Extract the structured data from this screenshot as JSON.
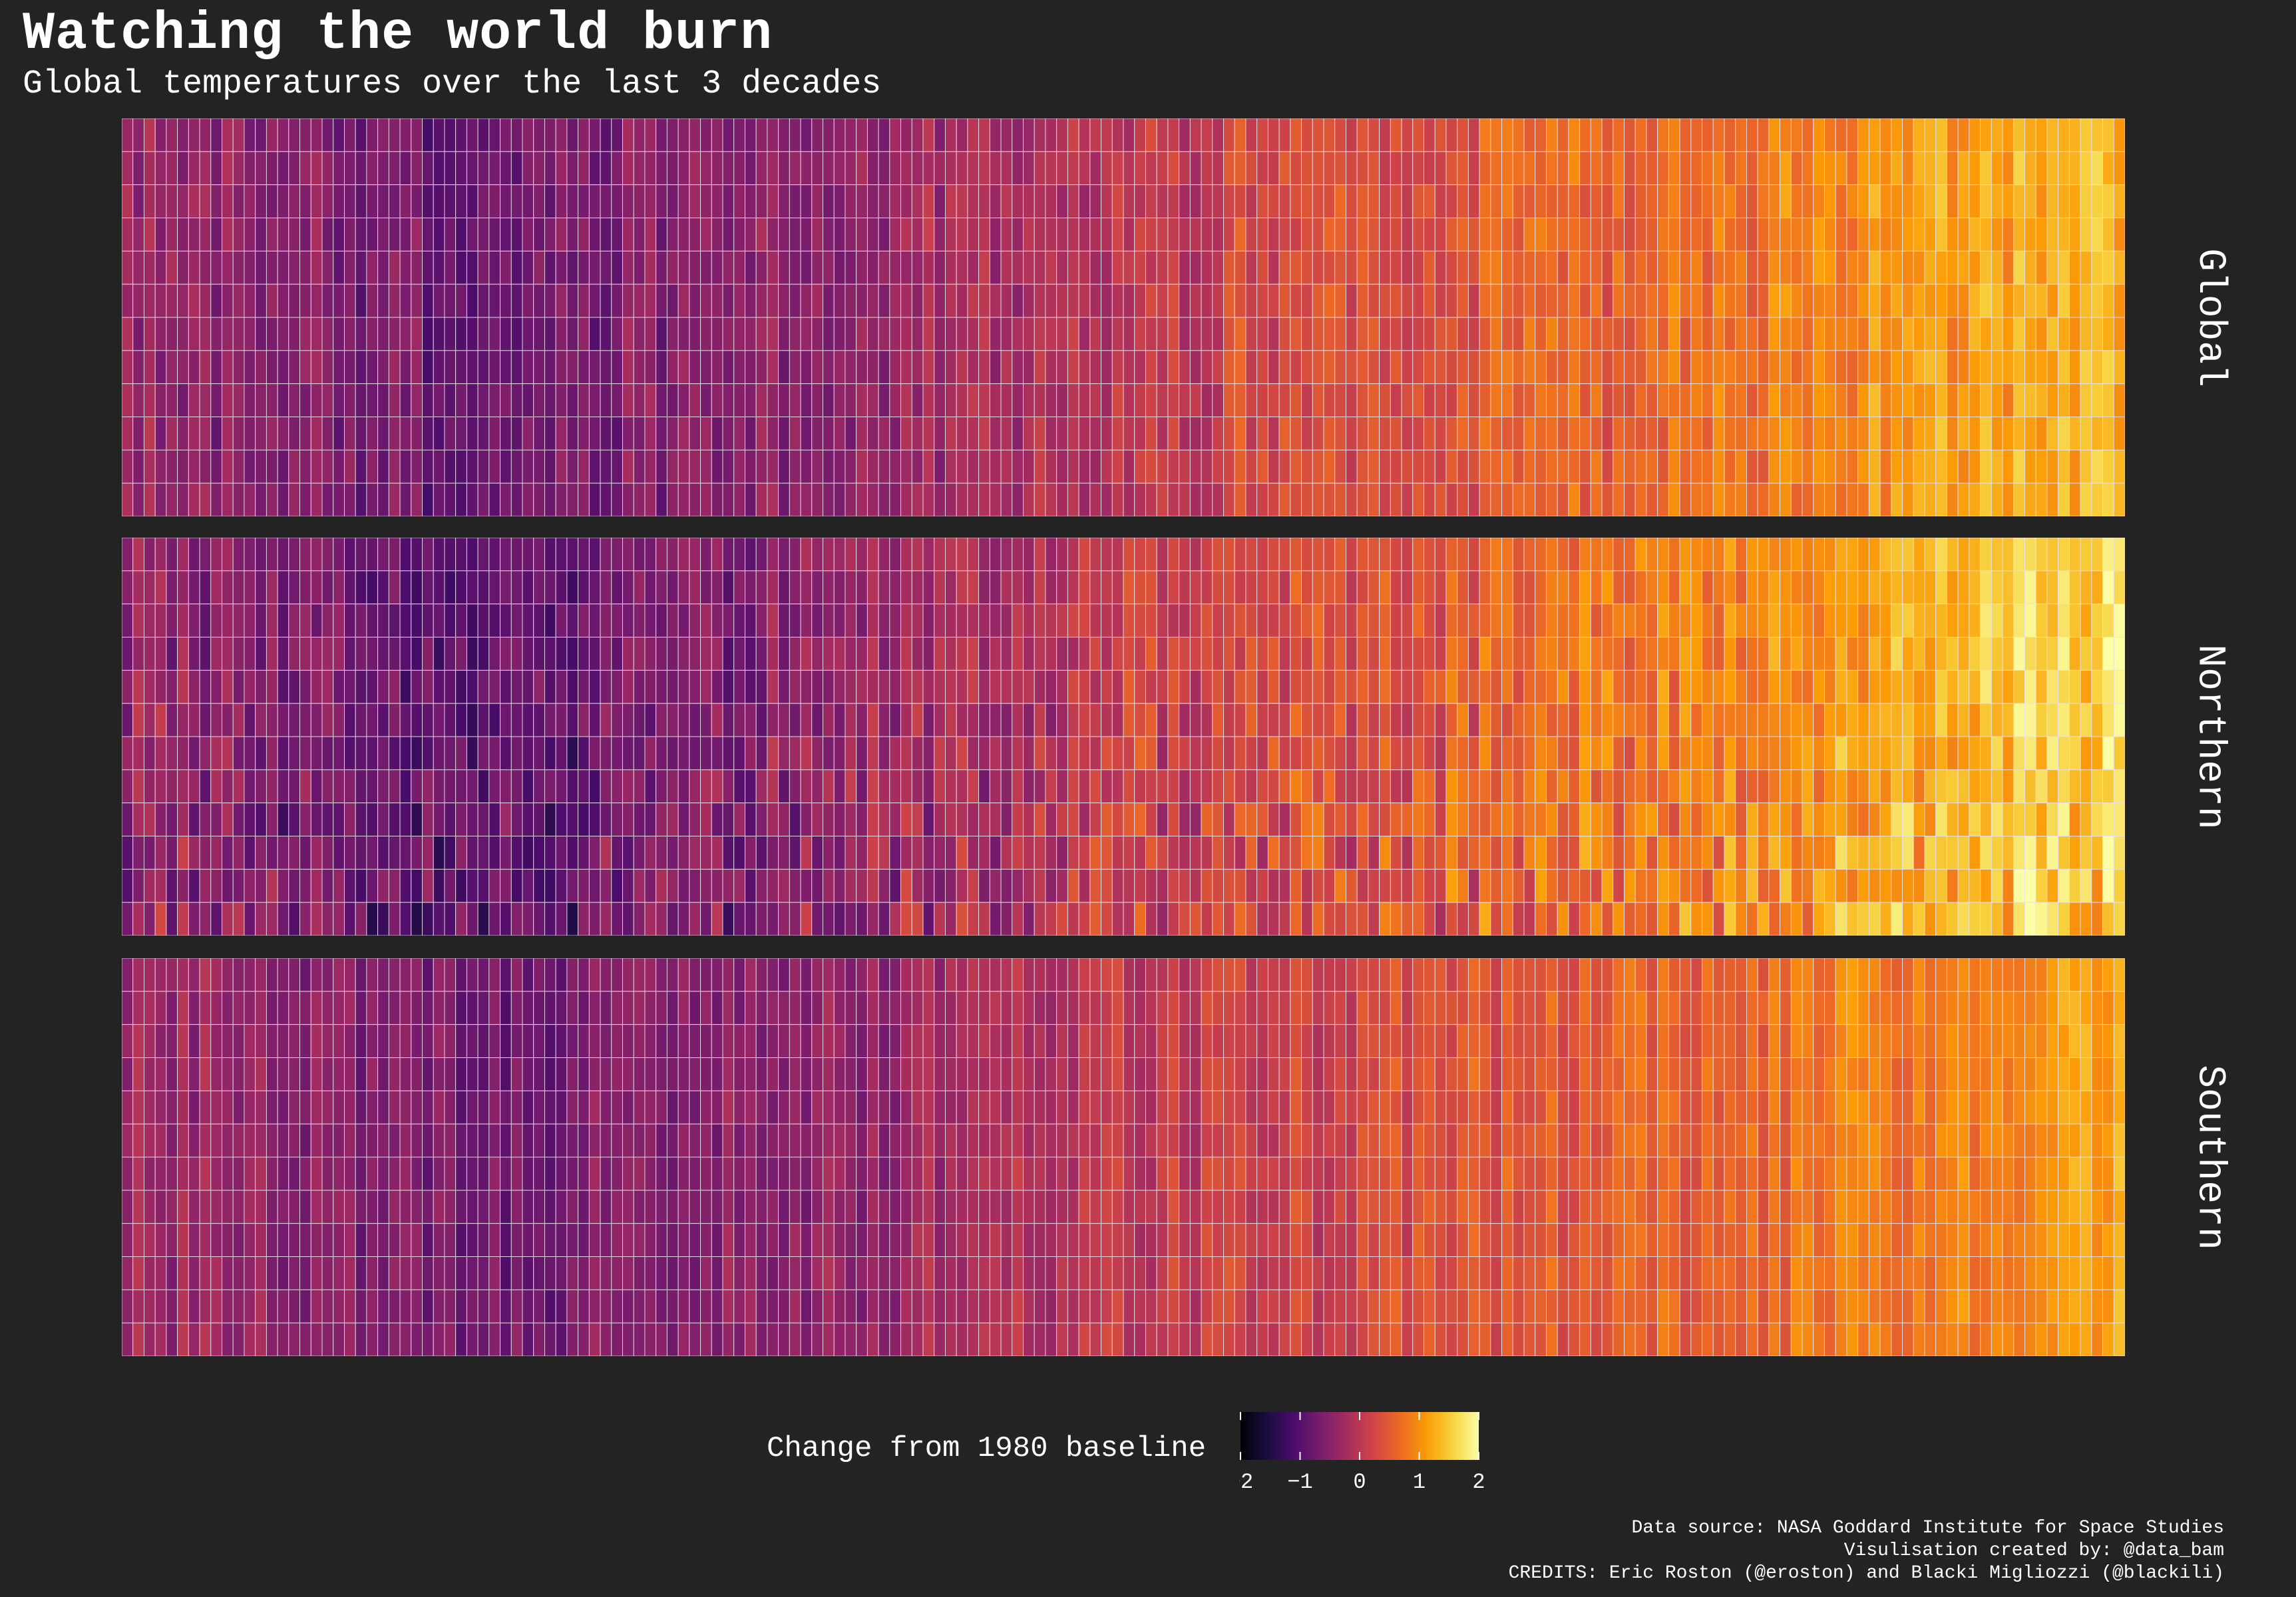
{
  "title": "Watching the world burn",
  "subtitle": "Global temperatures over the last 3 decades",
  "panels": [
    {
      "label": "Global"
    },
    {
      "label": "Northern"
    },
    {
      "label": "Southern"
    }
  ],
  "legend": {
    "title": "Change from 1980 baseline",
    "ticks": [
      "−2",
      "−1",
      "0",
      "1",
      "2"
    ],
    "palette": "inferno",
    "colors": [
      "#000004",
      "#1b0c41",
      "#4a0c6b",
      "#781c6d",
      "#a52c60",
      "#cf4446",
      "#ed6925",
      "#fb9b06",
      "#f7d13d",
      "#fcffa4"
    ]
  },
  "credits": [
    "Data source: NASA Goddard Institute for Space Studies",
    "Visulisation created by: @data_bam",
    "CREDITS: Eric Roston (@eroston) and Blacki Migliozzi (@blackili)"
  ],
  "chart_data": {
    "type": "heatmap",
    "facets": [
      "Global",
      "Northern",
      "Southern"
    ],
    "columns": 180,
    "rows_per_facet": 12,
    "value_range": [
      -2,
      2
    ],
    "column_means": {
      "Global": [
        -0.35,
        -0.45,
        -0.55,
        -0.7,
        -0.8,
        -0.75,
        -0.6,
        -0.55,
        -0.4,
        -0.3,
        -0.15,
        -0.05,
        0.1,
        0.25,
        0.3,
        0.4,
        0.5,
        0.6,
        0.7,
        0.8,
        1.0,
        1.1,
        1.25,
        1.4
      ],
      "Northern": [
        -0.4,
        -0.55,
        -0.7,
        -0.85,
        -0.9,
        -0.85,
        -0.65,
        -0.55,
        -0.45,
        -0.3,
        -0.15,
        0.0,
        0.15,
        0.25,
        0.35,
        0.45,
        0.6,
        0.75,
        0.85,
        1.0,
        1.2,
        1.35,
        1.5,
        1.65
      ],
      "Southern": [
        -0.3,
        -0.35,
        -0.45,
        -0.55,
        -0.7,
        -0.65,
        -0.55,
        -0.5,
        -0.4,
        -0.3,
        -0.2,
        -0.1,
        0.05,
        0.15,
        0.25,
        0.35,
        0.45,
        0.5,
        0.6,
        0.7,
        0.8,
        0.9,
        1.0,
        1.1
      ]
    }
  }
}
